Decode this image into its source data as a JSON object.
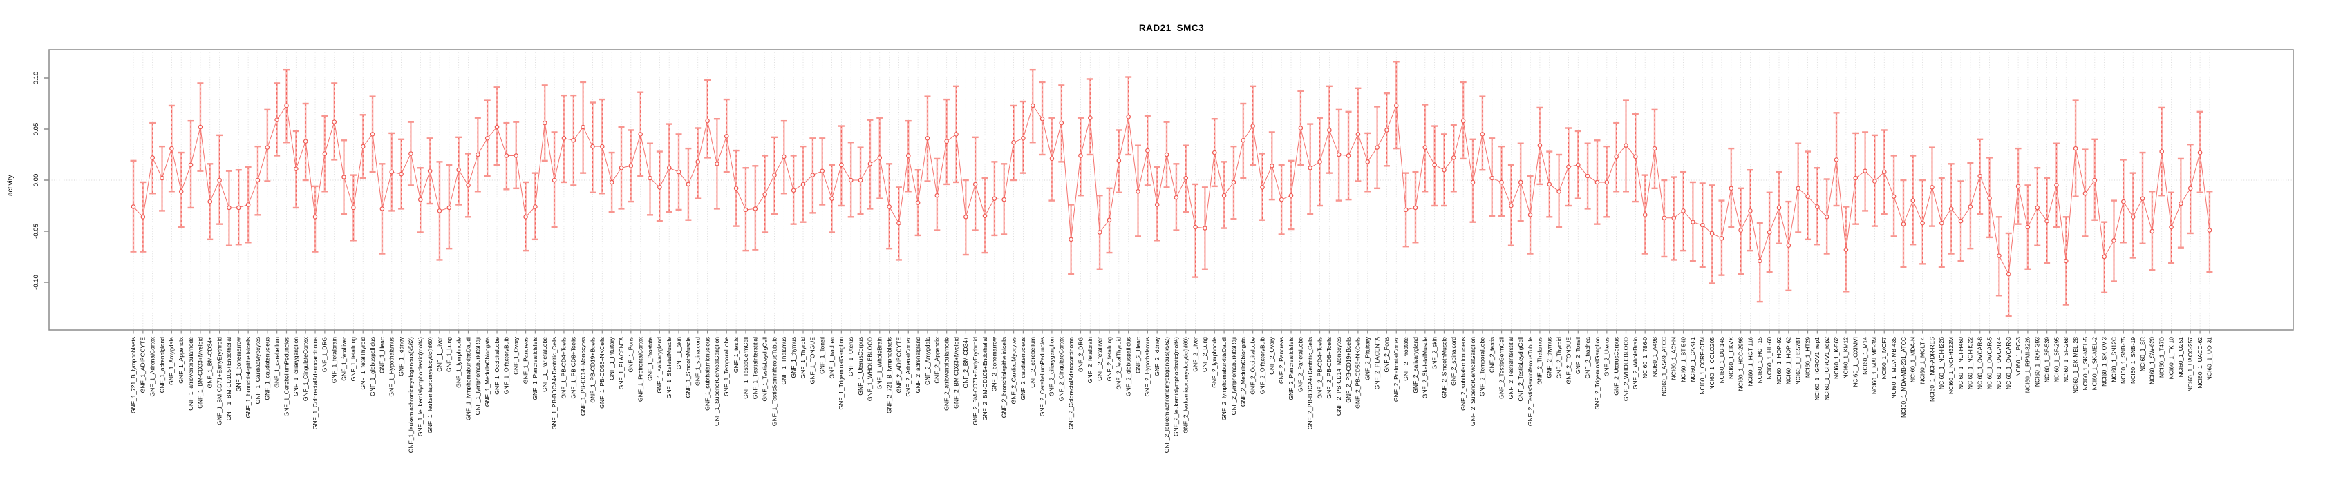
{
  "title": "RAD21_SMC3",
  "y_axis": {
    "label": "activity",
    "tick_labels": [
      "0.10",
      "0.05",
      "0.00",
      "-0.05",
      "-0.10"
    ],
    "tick_values": [
      0.1,
      0.05,
      0.0,
      -0.05,
      -0.1
    ]
  },
  "colors": {
    "series": "#f4736e",
    "marker_stroke": "#ef564f",
    "errorbar_light": "#f9a5a0",
    "errorbar_dash": "#f4635d",
    "errorbar_cap": "#f8958f",
    "grid": "#d6d6d6",
    "axis": "#8c8c8c",
    "text": "#000000"
  },
  "chart_data": {
    "type": "scatter",
    "title": "RAD21_SMC3",
    "xlabel": "",
    "ylabel": "activity",
    "ylim": [
      -0.147,
      0.128
    ],
    "grid": "vertical dotted gridline at every category; horizontal dotted line at y=0",
    "legend": "none",
    "marker": "open-circle with asymmetric error bars, points connected by line",
    "categories": [
      "GNF_1_721_B_lymphoblasts",
      "GNF_1_ADIPOCYTE",
      "GNF_1_AdrenalCortex",
      "GNF_1_adrenalgland",
      "GNF_1_Amygdala",
      "GNF_1_Appendix",
      "GNF_1_atrioventricularnode",
      "GNF_1_BM-CD33+Myeloid",
      "GNF_1_BM-CD34+",
      "GNF_1_BM-CD71+EarlyErythroid",
      "GNF_1_BM-CD105+Endothelial",
      "GNF_1_bonemarrow",
      "GNF_1_bronchialepithelialcells",
      "GNF_1_CardiacMyocytes",
      "GNF_1_caudatenucleus",
      "GNF_1_cerebellum",
      "GNF_1_CerebellumPeduncles",
      "GNF_1_ciliaryganglion",
      "GNF_1_CingulateCortex",
      "GNF_1_ColorectalAdenocarcinoma",
      "GNF_1_DRG",
      "GNF_1_fetalbrain",
      "GNF_1_fetalliver",
      "GNF_1_fetallung",
      "GNF_1_fetalThyroid",
      "GNF_1_globuspallidus",
      "GNF_1_Heart",
      "GNF_1_Hypothalamus",
      "GNF_1_kidney",
      "GNF_1_leukemiachronicmyelogenous(k562)",
      "GNF_1_leukemialymphoblastic(molt4)",
      "GNF_1_leukemiapromyelocytic(hl60)",
      "GNF_1_Liver",
      "GNF_1_Lung",
      "GNF_1_lymphnode",
      "GNF_1_lymphomaburkittsDaudi",
      "GNF_1_lymphomaburkittsRaji",
      "GNF_1_MedullaOblongata",
      "GNF_1_OccipitalLobe",
      "GNF_1_OlfactoryBulb",
      "GNF_1_Ovary",
      "GNF_1_Pancreas",
      "GNF_1_Pancreaticislets",
      "GNF_1_ParietalLobe",
      "GNF_1_PB-BDCA4+Dentritic_Cells",
      "GNF_1_PB-CD4+Tcells",
      "GNF_1_PB-CD8+Tcells",
      "GNF_1_PB-CD14+Monocytes",
      "GNF_1_PB-CD19+Bcells",
      "GNF_1_PB-CD56+NKCells",
      "GNF_1_Pituitary",
      "GNF_1_PLACENTA",
      "GNF_1_Pons",
      "GNF_1_PrefrontalCortex",
      "GNF_1_Prostate",
      "GNF_1_salivarygland",
      "GNF_1_SkeletalMuscle",
      "GNF_1_skin",
      "GNF_1_SmoothMuscle",
      "GNF_1_spinalcord",
      "GNF_1_subthalamicnucleus",
      "GNF_1_SuperiorCervicalGanglion",
      "GNF_1_TemporalLobe",
      "GNF_1_testis",
      "GNF_1_TestisGermCell",
      "GNF_1_TestisInterstitial",
      "GNF_1_TestisLeydigCell",
      "GNF_1_TestisSeminiferousTubule",
      "GNF_1_Thalamus",
      "GNF_1_thymus",
      "GNF_1_Thyroid",
      "GNF_1_TONGUE",
      "GNF_1_Tonsil",
      "GNF_1_trachea",
      "GNF_1_TrigeminalGanglion",
      "GNF_1_Uterus",
      "GNF_1_UterusCorpus",
      "GNF_1_WHOLEBLOOD",
      "GNF_1_WholeBrain",
      "GNF_2_721_B_lymphoblasts",
      "GNF_2_ADIPOCYTE",
      "GNF_2_AdrenalCortex",
      "GNF_2_adrenalgland",
      "GNF_2_Amygdala",
      "GNF_2_Appendix",
      "GNF_2_atrioventricularnode",
      "GNF_2_BM-CD33+Myeloid",
      "GNF_2_BM-CD34+",
      "GNF_2_BM-CD71+EarlyErythroid",
      "GNF_2_BM-CD105+Endothelial",
      "GNF_2_bonemarrow",
      "GNF_2_bronchialepithelialcells",
      "GNF_2_CardiacMyocytes",
      "GNF_2_caudatenucleus",
      "GNF_2_cerebellum",
      "GNF_2_CerebellumPeduncles",
      "GNF_2_ciliaryganglion",
      "GNF_2_CingulateCortex",
      "GNF_2_ColorectalAdenocarcinoma",
      "GNF_2_DRG",
      "GNF_2_fetalbrain",
      "GNF_2_fetalliver",
      "GNF_2_fetallung",
      "GNF_2_fetalThyroid",
      "GNF_2_globuspallidus",
      "GNF_2_Heart",
      "GNF_2_Hypothalamus",
      "GNF_2_kidney",
      "GNF_2_leukemiachronicmyelogenous(k562)",
      "GNF_2_leukemialymphoblastic(molt4)",
      "GNF_2_leukemiapromyelocytic(hl60)",
      "GNF_2_Liver",
      "GNF_2_Lung",
      "GNF_2_lymphnode",
      "GNF_2_lymphomaburkittsDaudi",
      "GNF_2_lymphomaburkittsRaji",
      "GNF_2_MedullaOblongata",
      "GNF_2_OccipitalLobe",
      "GNF_2_OlfactoryBulb",
      "GNF_2_Ovary",
      "GNF_2_Pancreas",
      "GNF_2_Pancreaticislets",
      "GNF_2_ParietalLobe",
      "GNF_2_PB-BDCA4+Dentritic_Cells",
      "GNF_2_PB-CD4+Tcells",
      "GNF_2_PB-CD8+Tcells",
      "GNF_2_PB-CD14+Monocytes",
      "GNF_2_PB-CD19+Bcells",
      "GNF_2_PB-CD56+NKCells",
      "GNF_2_Pituitary",
      "GNF_2_PLACENTA",
      "GNF_2_Pons",
      "GNF_2_PrefrontalCortex",
      "GNF_2_Prostate",
      "GNF_2_salivarygland",
      "GNF_2_SkeletalMuscle",
      "GNF_2_skin",
      "GNF_2_SmoothMuscle",
      "GNF_2_spinalcord",
      "GNF_2_subthalamicnucleus",
      "GNF_2_SuperiorCervicalGanglion",
      "GNF_2_TemporalLobe",
      "GNF_2_testis",
      "GNF_2_TestisGermCell",
      "GNF_2_TestisInterstitial",
      "GNF_2_TestisLeydigCell",
      "GNF_2_TestisSeminiferousTubule",
      "GNF_2_Thalamus",
      "GNF_2_thymus",
      "GNF_2_Thyroid",
      "GNF_2_TONGUE",
      "GNF_2_Tonsil",
      "GNF_2_trachea",
      "GNF_2_TrigeminalGanglion",
      "GNF_2_Uterus",
      "GNF_2_UterusCorpus",
      "GNF_2_WHOLEBLOOD",
      "GNF_2_WholeBrain",
      "NCI60_1_786-0",
      "NCI60_1_A498",
      "NCI60_1_A549_ATCC",
      "NCI60_1_ACHN",
      "NCI60_1_BT-549",
      "NCI60_1_CAKI-1",
      "NCI60_1_CCRF-CEM",
      "NCI60_1_COLO205",
      "NCI60_1_DU-145",
      "NCI60_1_EKVX",
      "NCI60_1_HCC-2998",
      "NCI60_1_HCT-116",
      "NCI60_1_HCT-15",
      "NCI60_1_HL-60",
      "NCI60_1_HOP-92",
      "NCI60_1_HOP-62",
      "NCI60_1_HS578T",
      "NCI60_1_HT29",
      "NCI60_1_IGROV1_rep1",
      "NCI60_1_IGROV1_rep2",
      "NCI60_1_K-562",
      "NCI60_1_KM12",
      "NCI60_1_LOXIMVI",
      "NCI60_1_M14",
      "NCI60_1_MALME-3M",
      "NCI60_1_MCF7",
      "NCI60_1_MDA-MB-435",
      "NCI60_1_MDA-MB-231_ATCC",
      "NCI60_1_MDA-N",
      "NCI60_1_MOLT-4",
      "NCI60_1_NCI-ADR-RES",
      "NCI60_1_NCI-H226",
      "NCI60_1_NCI-H322M",
      "NCI60_1_NCI-H460",
      "NCI60_1_NCI-H522",
      "NCI60_1_OVCAR-8",
      "NCI60_1_OVCAR-5",
      "NCI60_1_OVCAR-4",
      "NCI60_1_OVCAR-3",
      "NCI60_1_PC-3",
      "NCI60_1_RPMI-8226",
      "NCI60_1_RXF-393",
      "NCI60_1_SF-539",
      "NCI60_1_SF-295",
      "NCI60_1_SF-268",
      "NCI60_1_SK-MEL-28",
      "NCI60_1_SK-MEL-5",
      "NCI60_1_SK-MEL-2",
      "NCI60_1_SK-OV-3",
      "NCI60_1_SN12C",
      "NCI60_1_SNB-75",
      "NCI60_1_SNB-19",
      "NCI60_1_SR",
      "NCI60_1_SW-620",
      "NCI60_1_T47D",
      "NCI60_1_TK-10",
      "NCI60_1_U251",
      "NCI60_1_UACC-257",
      "NCI60_1_UACC-62",
      "NCI60_1_UO-31"
    ],
    "values": [
      -0.026,
      -0.036,
      0.022,
      0.002,
      0.031,
      -0.011,
      0.015,
      0.052,
      -0.021,
      0.0,
      -0.027,
      -0.027,
      -0.024,
      0.0,
      0.032,
      0.059,
      0.073,
      0.011,
      0.038,
      -0.036,
      0.026,
      0.057,
      0.003,
      -0.027,
      0.033,
      0.045,
      -0.028,
      0.008,
      0.006,
      0.026,
      -0.019,
      0.009,
      -0.03,
      -0.027,
      0.01,
      -0.005,
      0.025,
      0.041,
      0.052,
      0.024,
      0.024,
      -0.036,
      -0.026,
      0.056,
      0.0,
      0.041,
      0.039,
      0.052,
      0.033,
      0.033,
      -0.002,
      0.012,
      0.014,
      0.045,
      0.002,
      -0.007,
      0.012,
      0.008,
      -0.004,
      0.018,
      0.058,
      0.016,
      0.043,
      -0.008,
      -0.029,
      -0.028,
      -0.014,
      0.005,
      0.023,
      -0.01,
      -0.004,
      0.005,
      0.009,
      -0.018,
      0.015,
      0.0,
      0.0,
      0.016,
      0.022,
      -0.026,
      -0.042,
      0.024,
      -0.022,
      0.041,
      -0.015,
      0.038,
      0.045,
      -0.036,
      -0.004,
      -0.035,
      -0.018,
      -0.019,
      0.037,
      0.041,
      0.073,
      0.06,
      0.021,
      0.056,
      -0.058,
      0.024,
      0.061,
      -0.051,
      -0.039,
      0.019,
      0.062,
      -0.011,
      0.029,
      -0.024,
      0.025,
      -0.017,
      0.002,
      -0.046,
      -0.047,
      0.027,
      -0.015,
      -0.002,
      0.039,
      0.053,
      -0.007,
      0.014,
      -0.019,
      -0.015,
      0.051,
      0.012,
      0.018,
      0.049,
      0.025,
      0.024,
      0.045,
      0.018,
      0.032,
      0.049,
      0.073,
      -0.029,
      -0.027,
      0.032,
      0.015,
      0.01,
      0.022,
      0.058,
      -0.002,
      0.045,
      0.002,
      -0.002,
      -0.025,
      -0.002,
      -0.034,
      0.034,
      -0.004,
      -0.011,
      0.013,
      0.015,
      0.004,
      -0.002,
      -0.002,
      0.023,
      0.034,
      0.023,
      -0.034,
      0.031,
      -0.037,
      -0.037,
      -0.03,
      -0.041,
      -0.044,
      -0.052,
      -0.057,
      -0.008,
      -0.049,
      -0.03,
      -0.079,
      -0.051,
      -0.027,
      -0.064,
      -0.008,
      -0.016,
      -0.026,
      -0.036,
      0.02,
      -0.068,
      0.002,
      0.009,
      -0.001,
      0.008,
      -0.016,
      -0.043,
      -0.02,
      -0.042,
      -0.007,
      -0.042,
      -0.028,
      -0.04,
      -0.026,
      0.004,
      -0.018,
      -0.074,
      -0.092,
      -0.006,
      -0.046,
      -0.027,
      -0.04,
      -0.005,
      -0.079,
      0.031,
      -0.013,
      0.0,
      -0.075,
      -0.059,
      -0.021,
      -0.036,
      -0.018,
      -0.05,
      0.028,
      -0.046,
      -0.023,
      -0.008,
      0.027,
      -0.049
    ],
    "err_lo": [
      -0.07,
      -0.07,
      -0.013,
      -0.03,
      -0.011,
      -0.046,
      -0.027,
      0.009,
      -0.058,
      -0.043,
      -0.064,
      -0.063,
      -0.061,
      -0.034,
      -0.001,
      0.024,
      0.037,
      -0.027,
      0.0,
      -0.07,
      -0.011,
      0.02,
      -0.033,
      -0.059,
      0.002,
      0.008,
      -0.072,
      -0.03,
      -0.028,
      -0.005,
      -0.051,
      -0.023,
      -0.078,
      -0.067,
      -0.024,
      -0.036,
      -0.011,
      0.004,
      0.015,
      -0.009,
      -0.008,
      -0.069,
      -0.058,
      0.019,
      -0.046,
      -0.002,
      -0.005,
      0.007,
      -0.012,
      -0.013,
      -0.031,
      -0.028,
      -0.021,
      0.004,
      -0.034,
      -0.04,
      -0.031,
      -0.029,
      -0.039,
      -0.018,
      0.022,
      -0.028,
      0.008,
      -0.045,
      -0.069,
      -0.068,
      -0.051,
      -0.033,
      -0.013,
      -0.043,
      -0.041,
      -0.032,
      -0.024,
      -0.051,
      -0.025,
      -0.036,
      -0.033,
      -0.028,
      -0.018,
      -0.067,
      -0.078,
      -0.011,
      -0.054,
      -0.001,
      -0.049,
      -0.004,
      -0.002,
      -0.073,
      -0.049,
      -0.071,
      -0.054,
      -0.053,
      0.0,
      0.007,
      0.037,
      0.025,
      -0.02,
      0.018,
      -0.092,
      -0.015,
      0.025,
      -0.087,
      -0.071,
      -0.012,
      0.025,
      -0.055,
      -0.005,
      -0.059,
      -0.007,
      -0.049,
      -0.031,
      -0.095,
      -0.087,
      -0.006,
      -0.047,
      -0.038,
      0.002,
      0.015,
      -0.039,
      -0.019,
      -0.053,
      -0.048,
      0.015,
      -0.033,
      -0.025,
      0.007,
      -0.02,
      -0.019,
      -0.001,
      -0.011,
      -0.008,
      0.014,
      0.031,
      -0.065,
      -0.061,
      -0.011,
      -0.025,
      -0.025,
      -0.011,
      0.021,
      -0.041,
      0.01,
      -0.035,
      -0.035,
      -0.064,
      -0.04,
      -0.072,
      -0.004,
      -0.036,
      -0.046,
      -0.025,
      -0.018,
      -0.028,
      -0.043,
      -0.036,
      -0.011,
      -0.011,
      -0.021,
      -0.072,
      -0.008,
      -0.075,
      -0.078,
      -0.069,
      -0.079,
      -0.085,
      -0.101,
      -0.093,
      -0.046,
      -0.092,
      -0.069,
      -0.119,
      -0.09,
      -0.062,
      -0.108,
      -0.051,
      -0.058,
      -0.063,
      -0.072,
      -0.025,
      -0.109,
      -0.043,
      -0.03,
      -0.045,
      -0.033,
      -0.055,
      -0.085,
      -0.063,
      -0.082,
      -0.045,
      -0.085,
      -0.072,
      -0.079,
      -0.067,
      -0.033,
      -0.056,
      -0.113,
      -0.133,
      -0.043,
      -0.087,
      -0.064,
      -0.081,
      -0.046,
      -0.122,
      -0.016,
      -0.055,
      -0.039,
      -0.11,
      -0.099,
      -0.061,
      -0.076,
      -0.062,
      -0.088,
      -0.015,
      -0.081,
      -0.066,
      -0.052,
      -0.012,
      -0.09
    ],
    "err_hi": [
      0.019,
      -0.002,
      0.056,
      0.033,
      0.073,
      0.027,
      0.058,
      0.095,
      0.016,
      0.044,
      0.009,
      0.01,
      0.013,
      0.033,
      0.069,
      0.095,
      0.108,
      0.048,
      0.075,
      -0.006,
      0.063,
      0.095,
      0.039,
      0.005,
      0.064,
      0.082,
      0.016,
      0.046,
      0.04,
      0.057,
      0.012,
      0.041,
      0.018,
      0.015,
      0.042,
      0.026,
      0.061,
      0.078,
      0.091,
      0.056,
      0.057,
      -0.002,
      0.007,
      0.093,
      0.047,
      0.083,
      0.083,
      0.096,
      0.076,
      0.079,
      0.027,
      0.052,
      0.049,
      0.086,
      0.036,
      0.028,
      0.055,
      0.045,
      0.031,
      0.051,
      0.098,
      0.06,
      0.079,
      0.029,
      0.012,
      0.014,
      0.024,
      0.042,
      0.058,
      0.024,
      0.033,
      0.041,
      0.041,
      0.015,
      0.053,
      0.037,
      0.032,
      0.059,
      0.061,
      0.016,
      -0.007,
      0.058,
      0.01,
      0.082,
      0.021,
      0.079,
      0.092,
      0.0,
      0.042,
      0.002,
      0.018,
      0.016,
      0.073,
      0.077,
      0.108,
      0.096,
      0.061,
      0.093,
      -0.024,
      0.061,
      0.099,
      -0.015,
      -0.008,
      0.049,
      0.101,
      0.034,
      0.063,
      0.013,
      0.057,
      0.016,
      0.034,
      -0.004,
      -0.007,
      0.06,
      0.018,
      0.033,
      0.075,
      0.092,
      0.026,
      0.047,
      0.015,
      0.019,
      0.087,
      0.055,
      0.061,
      0.092,
      0.069,
      0.067,
      0.09,
      0.046,
      0.072,
      0.085,
      0.116,
      0.007,
      0.008,
      0.074,
      0.053,
      0.045,
      0.054,
      0.096,
      0.04,
      0.082,
      0.041,
      0.033,
      0.015,
      0.036,
      0.004,
      0.071,
      0.028,
      0.025,
      0.051,
      0.048,
      0.036,
      0.039,
      0.033,
      0.056,
      0.078,
      0.065,
      0.005,
      0.069,
      0.0,
      0.003,
      0.008,
      -0.002,
      -0.003,
      -0.005,
      -0.02,
      0.031,
      -0.008,
      0.01,
      -0.042,
      -0.012,
      0.008,
      -0.021,
      0.036,
      0.028,
      0.012,
      0.001,
      0.066,
      -0.026,
      0.046,
      0.047,
      0.044,
      0.049,
      0.024,
      0.0,
      0.024,
      0.0,
      0.032,
      0.002,
      0.016,
      -0.001,
      0.017,
      0.04,
      0.022,
      -0.036,
      -0.052,
      0.031,
      -0.005,
      0.012,
      0.002,
      0.036,
      -0.036,
      0.078,
      0.03,
      0.04,
      -0.041,
      -0.02,
      0.02,
      0.007,
      0.027,
      -0.011,
      0.071,
      -0.012,
      0.021,
      0.035,
      0.067,
      -0.011
    ]
  }
}
